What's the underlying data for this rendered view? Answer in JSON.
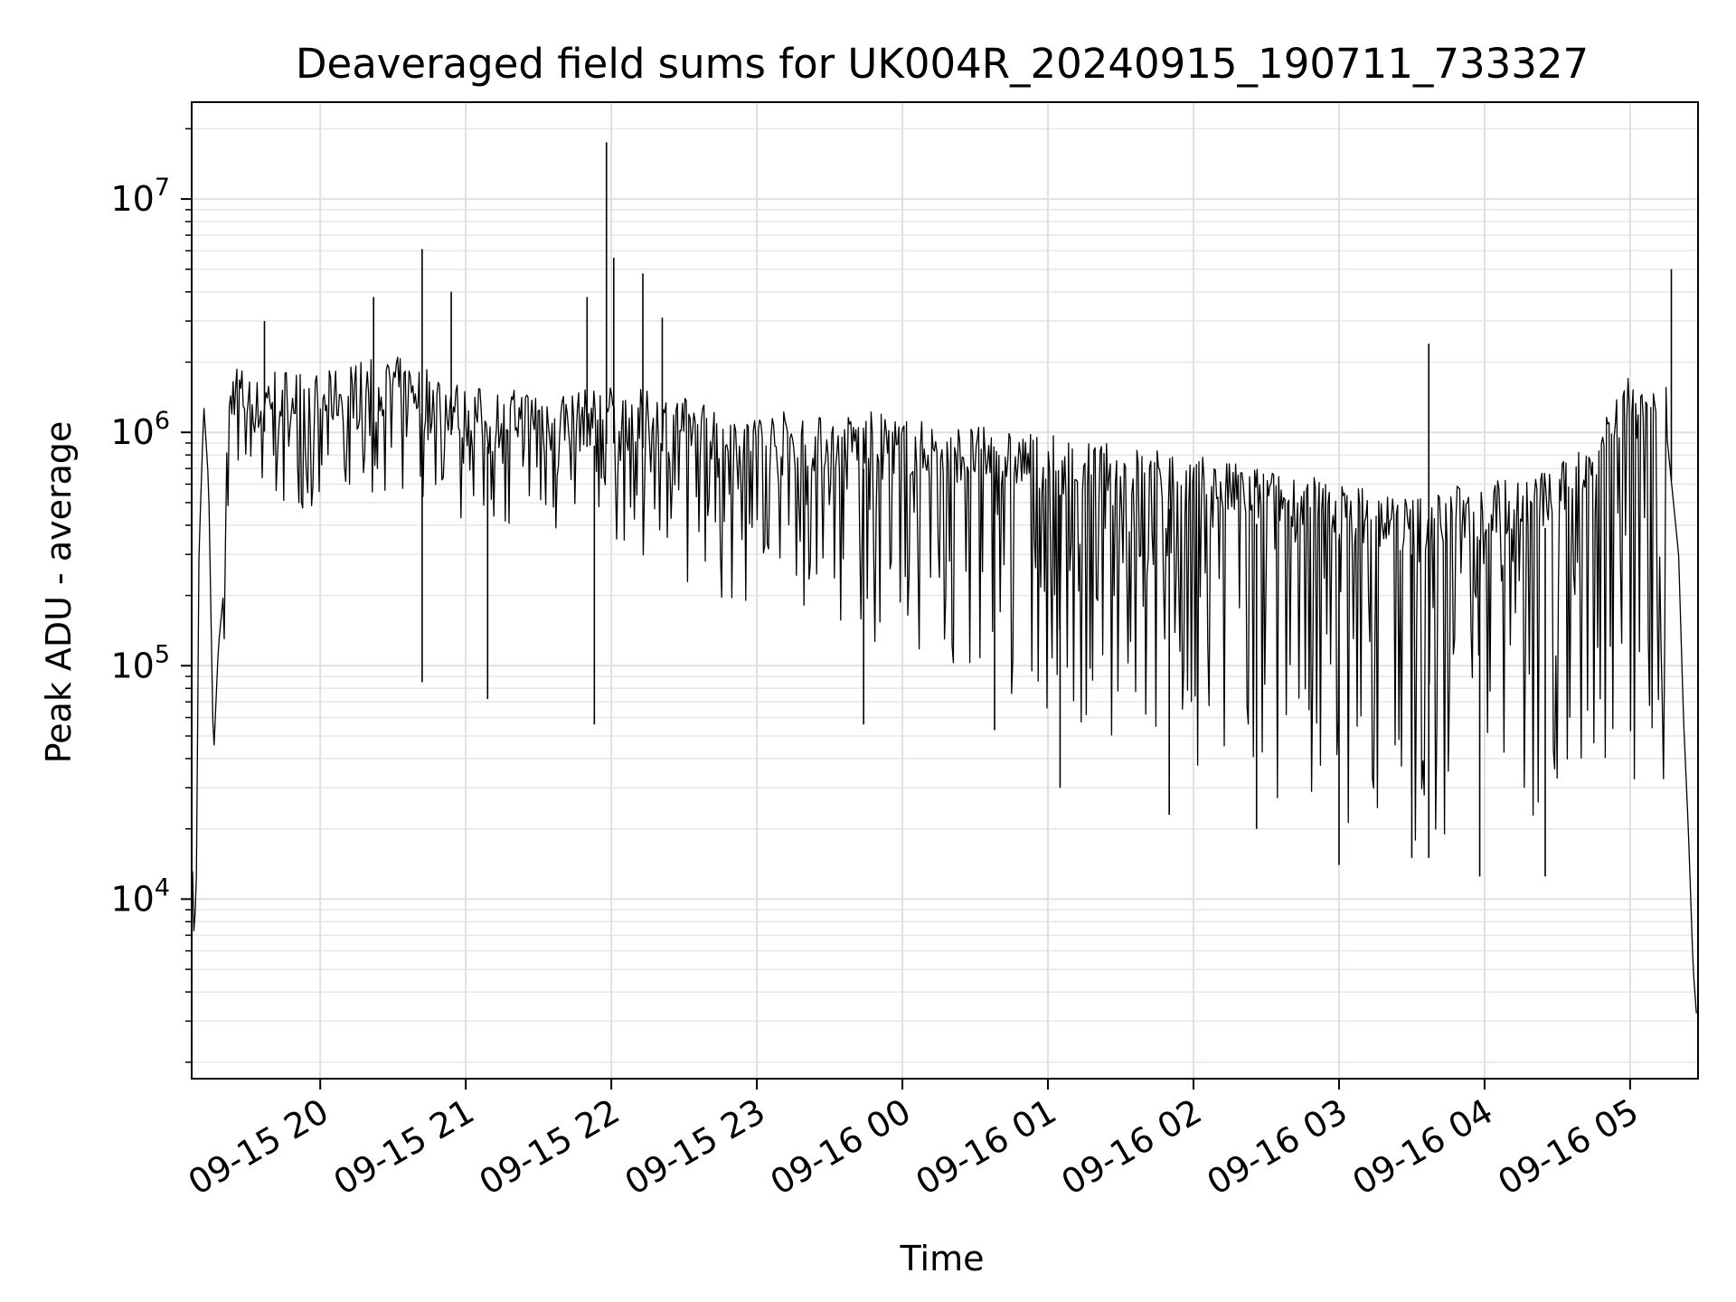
{
  "chart_data": {
    "type": "line",
    "title": "Deaveraged field sums for UK004R_20240915_190711_733327",
    "xlabel": "Time",
    "ylabel": "Peak ADU - average",
    "yscale": "log",
    "ylim": [
      1700,
      26000000
    ],
    "xlim": [
      "2024-09-15 19:07",
      "2024-09-16 05:28"
    ],
    "grid": true,
    "line_color": "#000000",
    "x_ticks": [
      {
        "t": "2024-09-15 20:00",
        "label": "09-15 20"
      },
      {
        "t": "2024-09-15 21:00",
        "label": "09-15 21"
      },
      {
        "t": "2024-09-15 22:00",
        "label": "09-15 22"
      },
      {
        "t": "2024-09-15 23:00",
        "label": "09-15 23"
      },
      {
        "t": "2024-09-16 00:00",
        "label": "09-16 00"
      },
      {
        "t": "2024-09-16 01:00",
        "label": "09-16 01"
      },
      {
        "t": "2024-09-16 02:00",
        "label": "09-16 02"
      },
      {
        "t": "2024-09-16 03:00",
        "label": "09-16 03"
      },
      {
        "t": "2024-09-16 04:00",
        "label": "09-16 04"
      },
      {
        "t": "2024-09-16 05:00",
        "label": "09-16 05"
      }
    ],
    "y_ticks": [
      {
        "value": 10000,
        "base": "10",
        "exp": "4"
      },
      {
        "value": 100000,
        "base": "10",
        "exp": "5"
      },
      {
        "value": 1000000,
        "base": "10",
        "exp": "6"
      },
      {
        "value": 10000000,
        "base": "10",
        "exp": "7"
      }
    ],
    "series": [
      {
        "values": [
          [
            "2024-09-15 19:07",
            20000
          ],
          [
            "2024-09-15 19:08",
            6500
          ],
          [
            "2024-09-15 19:09",
            13000
          ],
          [
            "2024-09-15 19:10",
            300000
          ],
          [
            "2024-09-15 19:12",
            1300000
          ],
          [
            "2024-09-15 19:14",
            600000
          ],
          [
            "2024-09-15 19:16",
            40000
          ],
          [
            "2024-09-15 19:18",
            120000
          ],
          [
            "2024-09-15 19:20",
            200000
          ],
          [
            "2024-09-15 19:22",
            900000
          ],
          [
            "2024-09-15 19:25",
            1200000
          ],
          [
            "2024-09-15 19:30",
            1000000
          ],
          [
            "2024-09-15 19:35",
            950000
          ],
          [
            "2024-09-15 19:40",
            1100000
          ],
          [
            "2024-09-15 19:50",
            1050000
          ],
          [
            "2024-09-15 20:00",
            1000000
          ],
          [
            "2024-09-15 20:15",
            1150000
          ],
          [
            "2024-09-15 20:30",
            1200000
          ],
          [
            "2024-09-15 20:45",
            1100000
          ],
          [
            "2024-09-15 21:00",
            900000
          ],
          [
            "2024-09-15 21:15",
            850000
          ],
          [
            "2024-09-15 21:30",
            900000
          ],
          [
            "2024-09-15 21:45",
            850000
          ],
          [
            "2024-09-15 22:00",
            900000
          ],
          [
            "2024-09-15 22:15",
            850000
          ],
          [
            "2024-09-15 22:30",
            800000
          ],
          [
            "2024-09-15 22:45",
            750000
          ],
          [
            "2024-09-15 23:00",
            700000
          ],
          [
            "2024-09-15 23:15",
            700000
          ],
          [
            "2024-09-15 23:30",
            650000
          ],
          [
            "2024-09-15 23:45",
            700000
          ],
          [
            "2024-09-16 00:00",
            650000
          ],
          [
            "2024-09-16 00:15",
            620000
          ],
          [
            "2024-09-16 00:30",
            600000
          ],
          [
            "2024-09-16 00:45",
            580000
          ],
          [
            "2024-09-16 01:00",
            550000
          ],
          [
            "2024-09-16 01:15",
            520000
          ],
          [
            "2024-09-16 01:30",
            500000
          ],
          [
            "2024-09-16 01:45",
            480000
          ],
          [
            "2024-09-16 02:00",
            450000
          ],
          [
            "2024-09-16 02:15",
            420000
          ],
          [
            "2024-09-16 02:30",
            400000
          ],
          [
            "2024-09-16 02:45",
            370000
          ],
          [
            "2024-09-16 03:00",
            350000
          ],
          [
            "2024-09-16 03:15",
            320000
          ],
          [
            "2024-09-16 03:30",
            300000
          ],
          [
            "2024-09-16 03:45",
            330000
          ],
          [
            "2024-09-16 04:00",
            350000
          ],
          [
            "2024-09-16 04:15",
            370000
          ],
          [
            "2024-09-16 04:30",
            400000
          ],
          [
            "2024-09-16 04:40",
            500000
          ],
          [
            "2024-09-16 04:50",
            800000
          ],
          [
            "2024-09-16 05:00",
            1000000
          ],
          [
            "2024-09-16 05:10",
            1100000
          ],
          [
            "2024-09-16 05:15",
            1000000
          ],
          [
            "2024-09-16 05:20",
            300000
          ],
          [
            "2024-09-16 05:22",
            60000
          ],
          [
            "2024-09-16 05:24",
            20000
          ],
          [
            "2024-09-16 05:26",
            5000
          ],
          [
            "2024-09-16 05:28",
            2600
          ]
        ]
      }
    ],
    "spikes": [
      {
        "t": "2024-09-15 19:37",
        "value": 3000000
      },
      {
        "t": "2024-09-15 20:22",
        "value": 3800000
      },
      {
        "t": "2024-09-15 20:42",
        "value": 6100000
      },
      {
        "t": "2024-09-15 20:54",
        "value": 4000000
      },
      {
        "t": "2024-09-15 21:50",
        "value": 3800000
      },
      {
        "t": "2024-09-15 21:58",
        "value": 17500000
      },
      {
        "t": "2024-09-15 22:01",
        "value": 5600000
      },
      {
        "t": "2024-09-15 22:13",
        "value": 4800000
      },
      {
        "t": "2024-09-15 22:21",
        "value": 3100000
      },
      {
        "t": "2024-09-16 03:37",
        "value": 2400000
      },
      {
        "t": "2024-09-16 05:17",
        "value": 5000000
      }
    ],
    "dips": [
      {
        "t": "2024-09-15 20:42",
        "value": 85000
      },
      {
        "t": "2024-09-15 21:09",
        "value": 72000
      },
      {
        "t": "2024-09-15 21:53",
        "value": 56000
      },
      {
        "t": "2024-09-15 23:44",
        "value": 56000
      },
      {
        "t": "2024-09-16 00:38",
        "value": 53000
      },
      {
        "t": "2024-09-16 01:05",
        "value": 30000
      },
      {
        "t": "2024-09-16 01:50",
        "value": 23000
      },
      {
        "t": "2024-09-16 02:26",
        "value": 20000
      },
      {
        "t": "2024-09-16 03:00",
        "value": 14000
      },
      {
        "t": "2024-09-16 03:30",
        "value": 15000
      },
      {
        "t": "2024-09-16 03:37",
        "value": 15000
      },
      {
        "t": "2024-09-16 03:58",
        "value": 12500
      },
      {
        "t": "2024-09-16 04:25",
        "value": 12500
      }
    ]
  }
}
